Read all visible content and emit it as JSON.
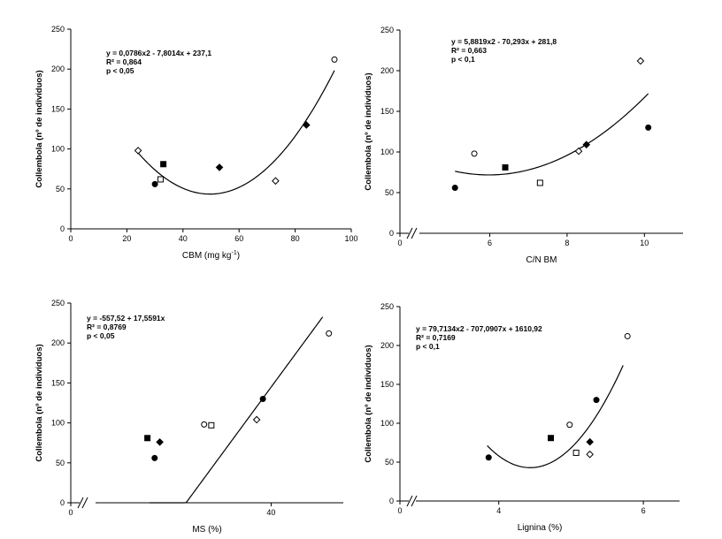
{
  "chart_data": [
    {
      "type": "scatter",
      "panel": "top-left",
      "xlabel": "CBM (mg kg",
      "xlabel_sup": "-1",
      "xlabel_end": ")",
      "ylabel": "Collembola (nº de indivíduos)",
      "xlim": [
        0,
        100
      ],
      "ylim": [
        0,
        250
      ],
      "xticks": [
        0,
        20,
        40,
        60,
        80,
        100
      ],
      "yticks": [
        0,
        50,
        100,
        150,
        200,
        250
      ],
      "axis_break": false,
      "annotation": [
        "y = 0,0786x2 - 7,8014x + 237,1",
        "R² = 0,864",
        "p < 0,05"
      ],
      "fit": {
        "kind": "quadratic",
        "coef": [
          237.1,
          -7.8014,
          0.0786
        ],
        "range": [
          24,
          94
        ]
      },
      "points": [
        {
          "x": 24,
          "y": 98,
          "marker": "diamond-open"
        },
        {
          "x": 30,
          "y": 56,
          "marker": "circle-filled"
        },
        {
          "x": 32,
          "y": 62,
          "marker": "square-open"
        },
        {
          "x": 33,
          "y": 81,
          "marker": "square-filled"
        },
        {
          "x": 53,
          "y": 77,
          "marker": "diamond-filled"
        },
        {
          "x": 73,
          "y": 60,
          "marker": "diamond-open"
        },
        {
          "x": 84,
          "y": 130,
          "marker": "diamond-filled"
        },
        {
          "x": 94,
          "y": 212,
          "marker": "circle-open"
        }
      ]
    },
    {
      "type": "scatter",
      "panel": "top-right",
      "xlabel": "C/N BM",
      "ylabel": "Collembola (nº de indivíduos)",
      "xlim": [
        4.5,
        11
      ],
      "ylim": [
        0,
        250
      ],
      "xticks": [
        6,
        8,
        10
      ],
      "xtick_zero": "0",
      "yticks": [
        0,
        50,
        100,
        150,
        200,
        250
      ],
      "axis_break": true,
      "annotation": [
        "y = 5,8819x2 - 70,293x + 281,8",
        "R² = 0,663",
        "p < 0,1"
      ],
      "fit": {
        "kind": "quadratic",
        "coef": [
          281.8,
          -70.293,
          5.8819
        ],
        "range": [
          5.1,
          10.1
        ]
      },
      "points": [
        {
          "x": 5.1,
          "y": 56,
          "marker": "circle-filled"
        },
        {
          "x": 5.6,
          "y": 98,
          "marker": "circle-open"
        },
        {
          "x": 6.4,
          "y": 81,
          "marker": "square-filled"
        },
        {
          "x": 7.3,
          "y": 62,
          "marker": "square-open"
        },
        {
          "x": 8.3,
          "y": 101,
          "marker": "diamond-open"
        },
        {
          "x": 8.5,
          "y": 109,
          "marker": "diamond-filled"
        },
        {
          "x": 9.9,
          "y": 212,
          "marker": "diamond-open"
        },
        {
          "x": 10.1,
          "y": 130,
          "marker": "circle-filled"
        }
      ]
    },
    {
      "type": "scatter",
      "panel": "bottom-left",
      "xlabel": "MS (%)",
      "ylabel": "Collembola (nº de indivíduos)",
      "xlim": [
        24,
        47
      ],
      "ylim": [
        0,
        250
      ],
      "xticks": [
        40
      ],
      "xtick_zero": "0",
      "yticks": [
        0,
        50,
        100,
        150,
        200,
        250
      ],
      "axis_break": true,
      "annotation": [
        "y = -557,52 + 17,5591x",
        "R² = 0,8769",
        "p < 0,05"
      ],
      "fit": {
        "kind": "linear",
        "coef": [
          -557.52,
          17.5591
        ],
        "range": [
          28.2,
          45.0
        ]
      },
      "points": [
        {
          "x": 28.0,
          "y": 81,
          "marker": "square-filled"
        },
        {
          "x": 28.7,
          "y": 56,
          "marker": "circle-filled"
        },
        {
          "x": 29.2,
          "y": 76,
          "marker": "diamond-filled"
        },
        {
          "x": 33.5,
          "y": 98,
          "marker": "circle-open"
        },
        {
          "x": 34.2,
          "y": 97,
          "marker": "square-open"
        },
        {
          "x": 38.6,
          "y": 104,
          "marker": "diamond-open"
        },
        {
          "x": 39.2,
          "y": 130,
          "marker": "circle-filled"
        },
        {
          "x": 45.6,
          "y": 212,
          "marker": "circle-open"
        }
      ]
    },
    {
      "type": "scatter",
      "panel": "bottom-right",
      "xlabel": "Lignina (%)",
      "ylabel": "Collembola (nº de indivíduos)",
      "xlim": [
        3.0,
        6.5
      ],
      "ylim": [
        0,
        250
      ],
      "xticks": [
        4,
        6
      ],
      "xtick_zero": "0",
      "yticks": [
        0,
        50,
        100,
        150,
        200,
        250
      ],
      "axis_break": true,
      "annotation": [
        "y = 79,7134x2 - 707,0907x + 1610,92",
        "R² = 0,7169",
        "p < 0,1"
      ],
      "fit": {
        "kind": "quadratic",
        "coef": [
          1610.92,
          -707.0907,
          79.7134
        ],
        "range": [
          3.84,
          5.72
        ]
      },
      "points": [
        {
          "x": 3.86,
          "y": 56,
          "marker": "circle-filled"
        },
        {
          "x": 4.72,
          "y": 81,
          "marker": "square-filled"
        },
        {
          "x": 4.98,
          "y": 98,
          "marker": "circle-open"
        },
        {
          "x": 5.07,
          "y": 62,
          "marker": "square-open"
        },
        {
          "x": 5.26,
          "y": 60,
          "marker": "diamond-open"
        },
        {
          "x": 5.26,
          "y": 76,
          "marker": "diamond-filled"
        },
        {
          "x": 5.35,
          "y": 130,
          "marker": "circle-filled"
        },
        {
          "x": 5.78,
          "y": 212,
          "marker": "circle-open"
        }
      ]
    }
  ]
}
